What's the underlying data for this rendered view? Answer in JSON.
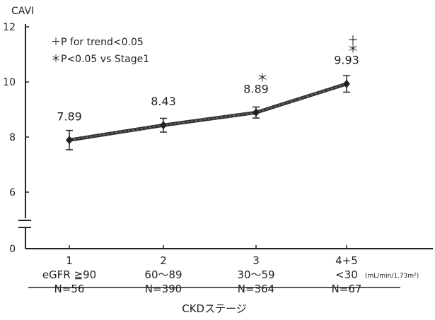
{
  "chart_data": {
    "type": "line",
    "ylabel": "CAVI",
    "xlabel": "CKDステージ",
    "ylim": [
      0,
      12
    ],
    "yticks": [
      0,
      6,
      8,
      10,
      12
    ],
    "y_axis_break": true,
    "grid": false,
    "legend_placement": "top-left",
    "legend": [
      "＋P for trend<0.05",
      "＊P<0.05 vs Stage1"
    ],
    "categories": [
      "1",
      "2",
      "3",
      "4+5"
    ],
    "category_rows": {
      "egfr": [
        "eGFR ≧90",
        "60〜89",
        "30〜59",
        "<30"
      ],
      "n": [
        "N=56",
        "N=390",
        "N=364",
        "N=67"
      ]
    },
    "egfr_unit": "(mL/min/1.73m²)",
    "series": [
      {
        "values": [
          7.89,
          8.43,
          8.89,
          9.93
        ],
        "error": [
          0.35,
          0.25,
          0.2,
          0.3
        ],
        "value_labels": [
          "7.89",
          "8.43",
          "8.89",
          "9.93"
        ],
        "markers": [
          "",
          "",
          "＊",
          "＊"
        ],
        "trend_marker": "＋"
      }
    ]
  }
}
